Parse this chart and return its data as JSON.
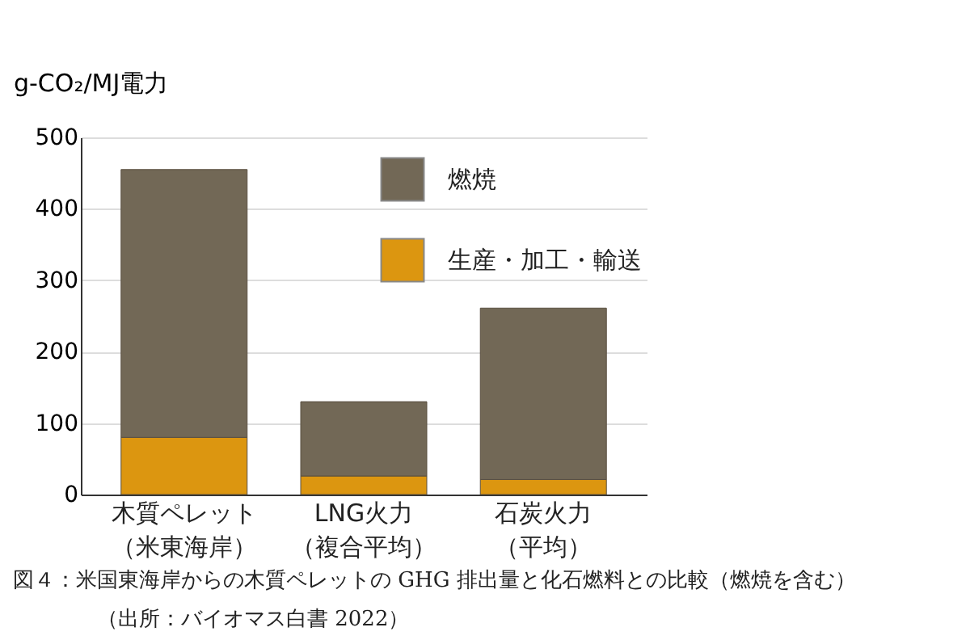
{
  "chart_data": {
    "type": "bar",
    "ylabel": "g-CO₂/MJ電力",
    "categories": [
      "木質ペレット（米東海岸）",
      "LNG火力（複合平均）",
      "石炭火力（平均）"
    ],
    "series": [
      {
        "name": "生産・加工・輸送",
        "color": "#dc9610",
        "values": [
          80,
          26,
          21
        ]
      },
      {
        "name": "燃焼",
        "color": "#726856",
        "values": [
          375,
          104,
          240
        ]
      }
    ],
    "stacked": true,
    "ylim": [
      0,
      500
    ],
    "yticks": [
      0,
      100,
      200,
      300,
      400,
      500
    ],
    "grid": "y",
    "legend": "top right",
    "annotations": [
      "図４：米国東海岸からの木質ペレットの GHG 排出量と化石燃料との比較（燃焼を含む）",
      "（出所：バイオマス白書 2022）"
    ]
  }
}
